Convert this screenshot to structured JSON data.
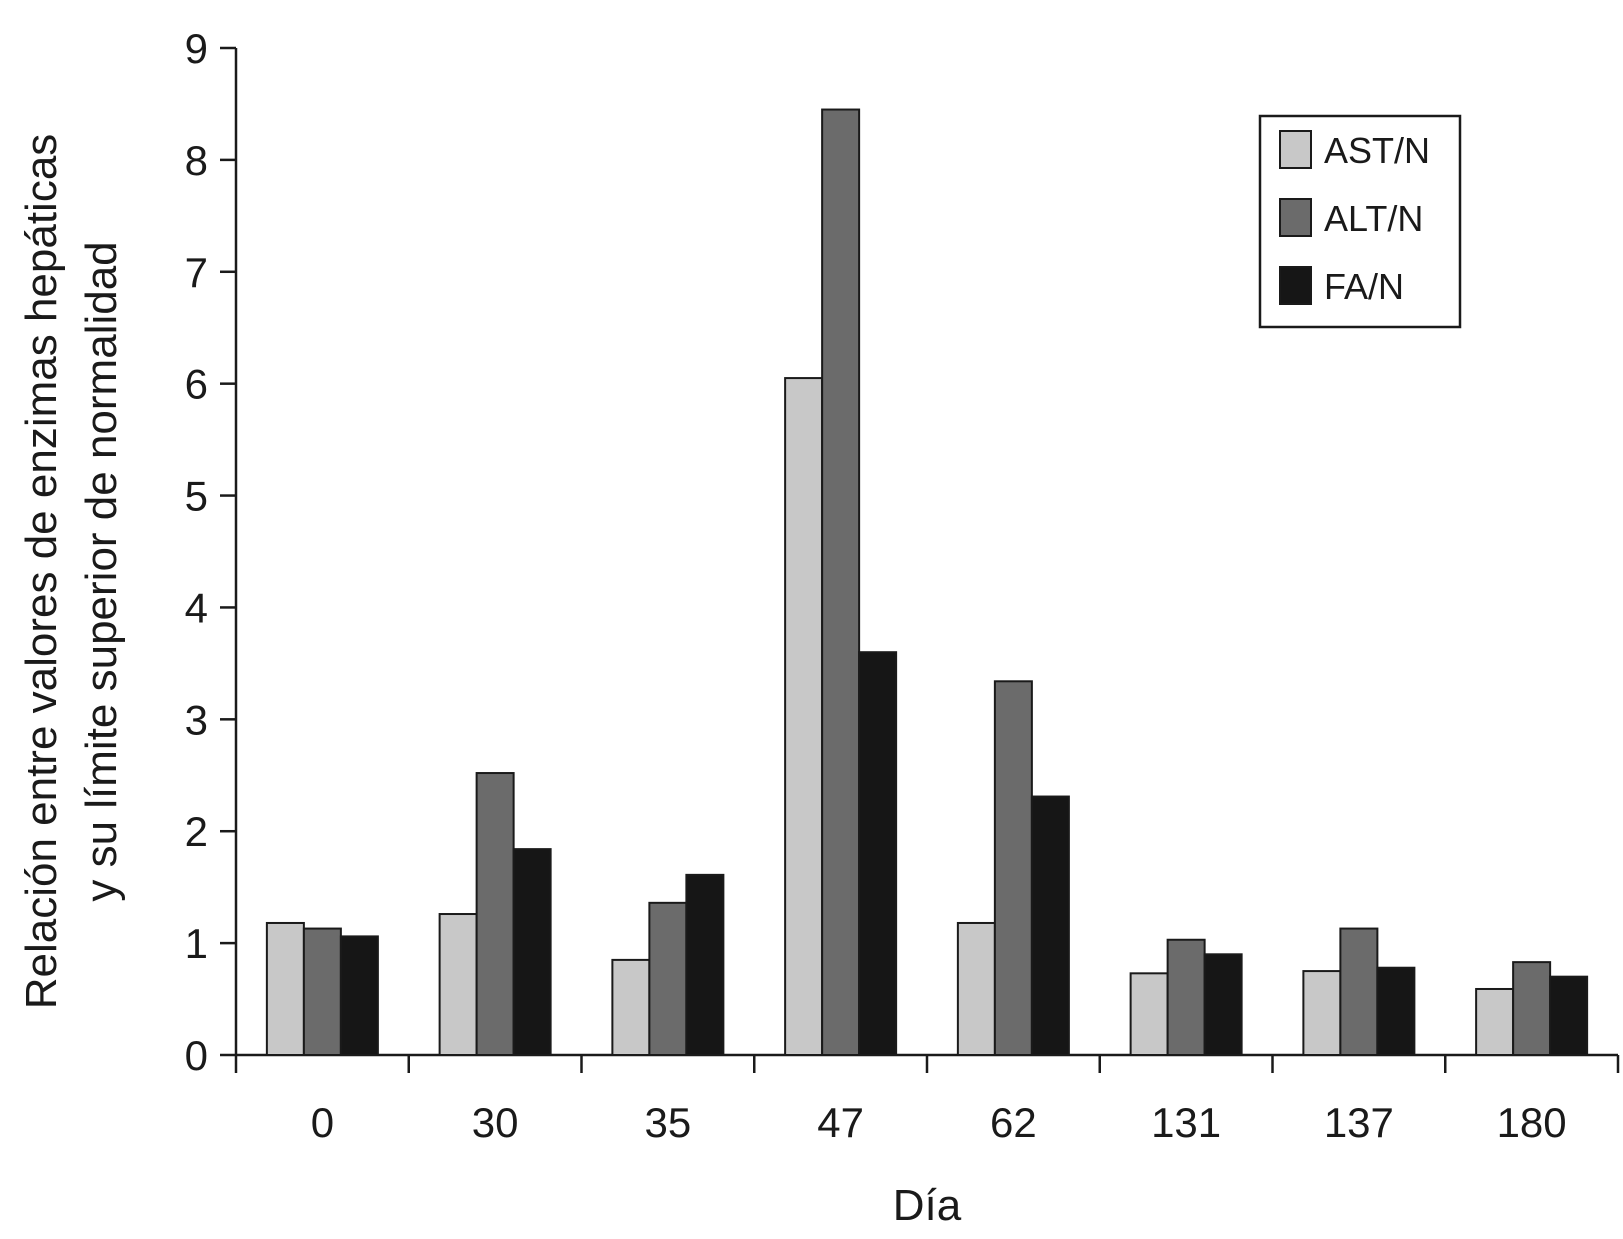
{
  "chart_data": {
    "type": "bar",
    "title": "",
    "xlabel": "Día",
    "ylabel_lines": [
      "Relación entre valores de enzimas hepáticas",
      "y su límite superior de normalidad"
    ],
    "categories": [
      "0",
      "30",
      "35",
      "47",
      "62",
      "131",
      "137",
      "180"
    ],
    "series": [
      {
        "name": "AST/N",
        "color": "#c8c8c8",
        "values": [
          1.18,
          1.26,
          0.85,
          6.05,
          1.18,
          0.73,
          0.75,
          0.59
        ]
      },
      {
        "name": "ALT/N",
        "color": "#6b6b6b",
        "values": [
          1.13,
          2.52,
          1.36,
          8.45,
          3.34,
          1.03,
          1.13,
          0.83
        ]
      },
      {
        "name": "FA/N",
        "color": "#161616",
        "values": [
          1.06,
          1.84,
          1.61,
          3.6,
          2.31,
          0.9,
          0.78,
          0.7
        ]
      }
    ],
    "ylim": [
      0,
      9
    ],
    "yticks": [
      "0",
      "1",
      "2",
      "3",
      "4",
      "5",
      "6",
      "7",
      "8",
      "9"
    ],
    "grid": false,
    "legend_position": "top-right"
  }
}
